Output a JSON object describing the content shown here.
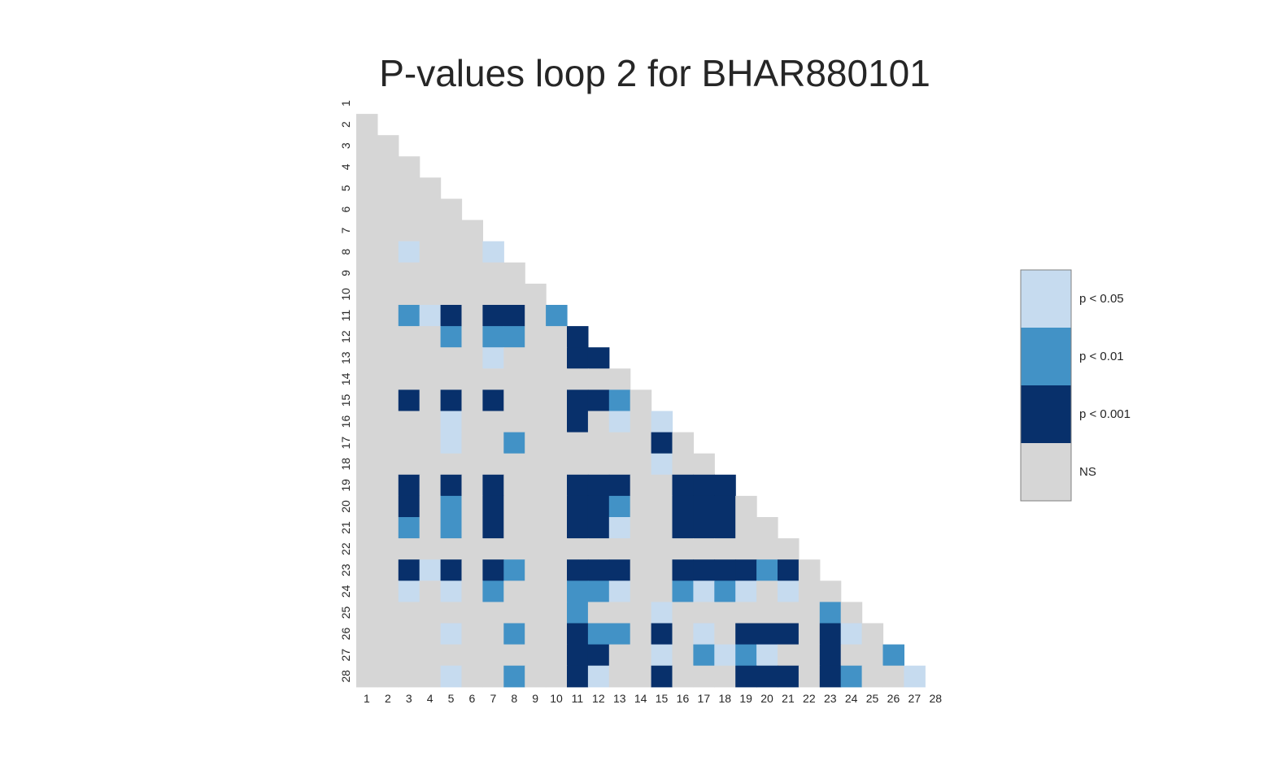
{
  "chart_data": {
    "type": "heatmap",
    "title": "P-values loop 2 for BHAR880101",
    "xlabel": "",
    "ylabel": "",
    "size": 28,
    "x_labels": [
      "1",
      "2",
      "3",
      "4",
      "5",
      "6",
      "7",
      "8",
      "9",
      "10",
      "11",
      "12",
      "13",
      "14",
      "15",
      "16",
      "17",
      "18",
      "19",
      "20",
      "21",
      "22",
      "23",
      "24",
      "25",
      "26",
      "27",
      "28"
    ],
    "y_labels": [
      "1",
      "2",
      "3",
      "4",
      "5",
      "6",
      "7",
      "8",
      "9",
      "10",
      "11",
      "12",
      "13",
      "14",
      "15",
      "16",
      "17",
      "18",
      "19",
      "20",
      "21",
      "22",
      "23",
      "24",
      "25",
      "26",
      "27",
      "28"
    ],
    "mask": "lower-triangle (cells with column < row are shown)",
    "levels": [
      {
        "code": 3,
        "label": "p < 0.05",
        "color": "#c6dbef"
      },
      {
        "code": 2,
        "label": "p < 0.01",
        "color": "#4292c6"
      },
      {
        "code": 1,
        "label": "p < 0.001",
        "color": "#08306b"
      },
      {
        "code": 0,
        "label": "NS",
        "color": "#d6d6d6"
      }
    ],
    "legend_position": "right",
    "grid": false,
    "matrix": [
      [
        0,
        0,
        0,
        0,
        0,
        0,
        0,
        0,
        0,
        0,
        0,
        0,
        0,
        0,
        0,
        0,
        0,
        0,
        0,
        0,
        0,
        0,
        0,
        0,
        0,
        0,
        0,
        0
      ],
      [
        0,
        0,
        0,
        0,
        0,
        0,
        0,
        0,
        0,
        0,
        0,
        0,
        0,
        0,
        0,
        0,
        0,
        0,
        0,
        0,
        0,
        0,
        0,
        0,
        0,
        0,
        0,
        0
      ],
      [
        0,
        0,
        0,
        0,
        0,
        0,
        0,
        0,
        0,
        0,
        0,
        0,
        0,
        0,
        0,
        0,
        0,
        0,
        0,
        0,
        0,
        0,
        0,
        0,
        0,
        0,
        0,
        0
      ],
      [
        0,
        0,
        0,
        0,
        0,
        0,
        0,
        0,
        0,
        0,
        0,
        0,
        0,
        0,
        0,
        0,
        0,
        0,
        0,
        0,
        0,
        0,
        0,
        0,
        0,
        0,
        0,
        0
      ],
      [
        0,
        0,
        0,
        0,
        0,
        0,
        0,
        0,
        0,
        0,
        0,
        0,
        0,
        0,
        0,
        0,
        0,
        0,
        0,
        0,
        0,
        0,
        0,
        0,
        0,
        0,
        0,
        0
      ],
      [
        0,
        0,
        0,
        0,
        0,
        0,
        0,
        0,
        0,
        0,
        0,
        0,
        0,
        0,
        0,
        0,
        0,
        0,
        0,
        0,
        0,
        0,
        0,
        0,
        0,
        0,
        0,
        0
      ],
      [
        0,
        0,
        0,
        0,
        0,
        0,
        0,
        0,
        0,
        0,
        0,
        0,
        0,
        0,
        0,
        0,
        0,
        0,
        0,
        0,
        0,
        0,
        0,
        0,
        0,
        0,
        0,
        0
      ],
      [
        0,
        0,
        3,
        0,
        0,
        0,
        3,
        0,
        0,
        0,
        0,
        0,
        0,
        0,
        0,
        0,
        0,
        0,
        0,
        0,
        0,
        0,
        0,
        0,
        0,
        0,
        0,
        0
      ],
      [
        0,
        0,
        0,
        0,
        0,
        0,
        0,
        0,
        0,
        0,
        0,
        0,
        0,
        0,
        0,
        0,
        0,
        0,
        0,
        0,
        0,
        0,
        0,
        0,
        0,
        0,
        0,
        0
      ],
      [
        0,
        0,
        0,
        0,
        0,
        0,
        0,
        0,
        0,
        0,
        0,
        0,
        0,
        0,
        0,
        0,
        0,
        0,
        0,
        0,
        0,
        0,
        0,
        0,
        0,
        0,
        0,
        0
      ],
      [
        0,
        0,
        2,
        3,
        1,
        0,
        1,
        1,
        0,
        2,
        0,
        0,
        0,
        0,
        0,
        0,
        0,
        0,
        0,
        0,
        0,
        0,
        0,
        0,
        0,
        0,
        0,
        0
      ],
      [
        0,
        0,
        0,
        0,
        2,
        0,
        2,
        2,
        0,
        0,
        1,
        0,
        0,
        0,
        0,
        0,
        0,
        0,
        0,
        0,
        0,
        0,
        0,
        0,
        0,
        0,
        0,
        0
      ],
      [
        0,
        0,
        0,
        0,
        0,
        0,
        3,
        0,
        0,
        0,
        1,
        1,
        0,
        0,
        0,
        0,
        0,
        0,
        0,
        0,
        0,
        0,
        0,
        0,
        0,
        0,
        0,
        0
      ],
      [
        0,
        0,
        0,
        0,
        0,
        0,
        0,
        0,
        0,
        0,
        0,
        0,
        0,
        0,
        0,
        0,
        0,
        0,
        0,
        0,
        0,
        0,
        0,
        0,
        0,
        0,
        0,
        0
      ],
      [
        0,
        0,
        1,
        0,
        1,
        0,
        1,
        0,
        0,
        0,
        1,
        1,
        2,
        0,
        0,
        0,
        0,
        0,
        0,
        0,
        0,
        0,
        0,
        0,
        0,
        0,
        0,
        0
      ],
      [
        0,
        0,
        0,
        0,
        3,
        0,
        0,
        0,
        0,
        0,
        1,
        0,
        3,
        0,
        3,
        0,
        0,
        0,
        0,
        0,
        0,
        0,
        0,
        0,
        0,
        0,
        0,
        0
      ],
      [
        0,
        0,
        0,
        0,
        3,
        0,
        0,
        2,
        0,
        0,
        0,
        0,
        0,
        0,
        1,
        0,
        0,
        0,
        0,
        0,
        0,
        0,
        0,
        0,
        0,
        0,
        0,
        0
      ],
      [
        0,
        0,
        0,
        0,
        0,
        0,
        0,
        0,
        0,
        0,
        0,
        0,
        0,
        0,
        3,
        0,
        0,
        0,
        0,
        0,
        0,
        0,
        0,
        0,
        0,
        0,
        0,
        0
      ],
      [
        0,
        0,
        1,
        0,
        1,
        0,
        1,
        0,
        0,
        0,
        1,
        1,
        1,
        0,
        0,
        1,
        1,
        1,
        0,
        0,
        0,
        0,
        0,
        0,
        0,
        0,
        0,
        0
      ],
      [
        0,
        0,
        1,
        0,
        2,
        0,
        1,
        0,
        0,
        0,
        1,
        1,
        2,
        0,
        0,
        1,
        1,
        1,
        0,
        0,
        0,
        0,
        0,
        0,
        0,
        0,
        0,
        0
      ],
      [
        0,
        0,
        2,
        0,
        2,
        0,
        1,
        0,
        0,
        0,
        1,
        1,
        3,
        0,
        0,
        1,
        1,
        1,
        0,
        0,
        0,
        0,
        0,
        0,
        0,
        0,
        0,
        0
      ],
      [
        0,
        0,
        0,
        0,
        0,
        0,
        0,
        0,
        0,
        0,
        0,
        0,
        0,
        0,
        0,
        0,
        0,
        0,
        0,
        0,
        0,
        0,
        0,
        0,
        0,
        0,
        0,
        0
      ],
      [
        0,
        0,
        1,
        3,
        1,
        0,
        1,
        2,
        0,
        0,
        1,
        1,
        1,
        0,
        0,
        1,
        1,
        1,
        1,
        2,
        1,
        0,
        0,
        0,
        0,
        0,
        0,
        0
      ],
      [
        0,
        0,
        3,
        0,
        3,
        0,
        2,
        0,
        0,
        0,
        2,
        2,
        3,
        0,
        0,
        2,
        3,
        2,
        3,
        0,
        3,
        0,
        0,
        0,
        0,
        0,
        0,
        0
      ],
      [
        0,
        0,
        0,
        0,
        0,
        0,
        0,
        0,
        0,
        0,
        2,
        0,
        0,
        0,
        3,
        0,
        0,
        0,
        0,
        0,
        0,
        0,
        2,
        0,
        0,
        0,
        0,
        0
      ],
      [
        0,
        0,
        0,
        0,
        3,
        0,
        0,
        2,
        0,
        0,
        1,
        2,
        2,
        0,
        1,
        0,
        3,
        0,
        1,
        1,
        1,
        0,
        1,
        3,
        0,
        0,
        0,
        0
      ],
      [
        0,
        0,
        0,
        0,
        0,
        0,
        0,
        0,
        0,
        0,
        1,
        1,
        0,
        0,
        3,
        0,
        2,
        3,
        2,
        3,
        0,
        0,
        1,
        0,
        0,
        2,
        0,
        0
      ],
      [
        0,
        0,
        0,
        0,
        3,
        0,
        0,
        2,
        0,
        0,
        1,
        3,
        0,
        0,
        1,
        0,
        0,
        0,
        1,
        1,
        1,
        0,
        1,
        2,
        0,
        0,
        3,
        0
      ]
    ]
  }
}
